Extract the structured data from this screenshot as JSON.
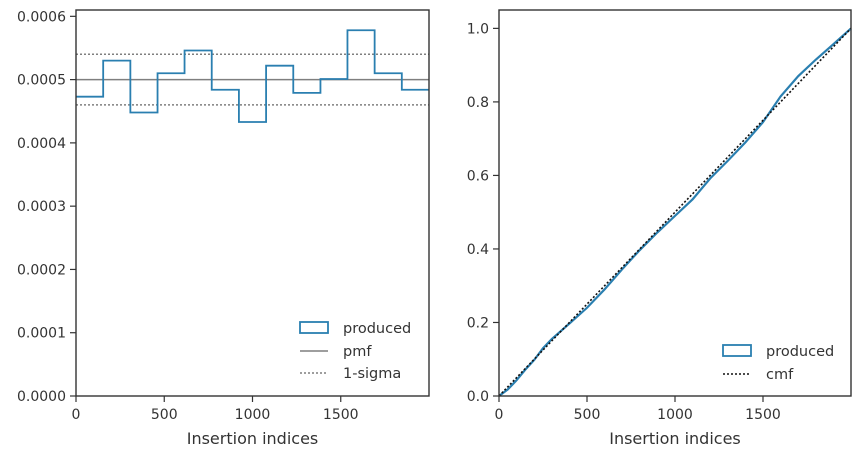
{
  "chart_data": [
    {
      "type": "histogram-step",
      "xlabel": "Insertion indices",
      "ylabel": "",
      "xlim": [
        0,
        2000
      ],
      "ylim": [
        0,
        0.00061
      ],
      "xticks": [
        0,
        500,
        1000,
        1500
      ],
      "xtick_labels": [
        "0",
        "500",
        "1000",
        "1500"
      ],
      "yticks": [
        0,
        0.0001,
        0.0002,
        0.0003,
        0.0004,
        0.0005,
        0.0006
      ],
      "ytick_labels": [
        "0.0000",
        "0.0001",
        "0.0002",
        "0.0003",
        "0.0004",
        "0.0005",
        "0.0006"
      ],
      "bin_edges": [
        0,
        154,
        308,
        462,
        615,
        769,
        923,
        1077,
        1231,
        1385,
        1538,
        1692,
        1846,
        2000
      ],
      "produced": [
        0.000473,
        0.00053,
        0.000448,
        0.00051,
        0.000546,
        0.000484,
        0.000433,
        0.000522,
        0.000479,
        0.000501,
        0.000578,
        0.00051,
        0.000484
      ],
      "pmf": 0.0005,
      "sigma_band": [
        0.00046,
        0.00054
      ],
      "legend": {
        "position": "lower-right",
        "entries": [
          "produced",
          "pmf",
          "1-sigma"
        ]
      },
      "colors": {
        "produced": "#2a7fb0",
        "pmf": "#7f7f7f",
        "sigma": "#7f7f7f"
      }
    },
    {
      "type": "line",
      "xlabel": "Insertion indices",
      "ylabel": "",
      "xlim": [
        0,
        2000
      ],
      "ylim": [
        0,
        1.05
      ],
      "xticks": [
        0,
        500,
        1000,
        1500
      ],
      "xtick_labels": [
        "0",
        "500",
        "1000",
        "1500"
      ],
      "yticks": [
        0,
        0.2,
        0.4,
        0.6,
        0.8,
        1.0
      ],
      "ytick_labels": [
        "0.0",
        "0.2",
        "0.4",
        "0.6",
        "0.8",
        "1.0"
      ],
      "series": [
        {
          "name": "produced",
          "x": [
            0,
            50,
            100,
            150,
            200,
            250,
            300,
            400,
            500,
            600,
            700,
            800,
            900,
            1000,
            1100,
            1200,
            1300,
            1400,
            1500,
            1600,
            1700,
            1800,
            1900,
            2000
          ],
          "y": [
            0,
            0.018,
            0.043,
            0.072,
            0.098,
            0.13,
            0.155,
            0.197,
            0.24,
            0.29,
            0.345,
            0.397,
            0.445,
            0.49,
            0.535,
            0.592,
            0.64,
            0.69,
            0.745,
            0.815,
            0.87,
            0.915,
            0.957,
            1.0
          ]
        },
        {
          "name": "cmf",
          "x": [
            0,
            2000
          ],
          "y": [
            0,
            1.0
          ]
        }
      ],
      "legend": {
        "position": "lower-right",
        "entries": [
          "produced",
          "cmf"
        ]
      },
      "colors": {
        "produced": "#2a7fb0",
        "cmf": "#111111"
      }
    }
  ]
}
